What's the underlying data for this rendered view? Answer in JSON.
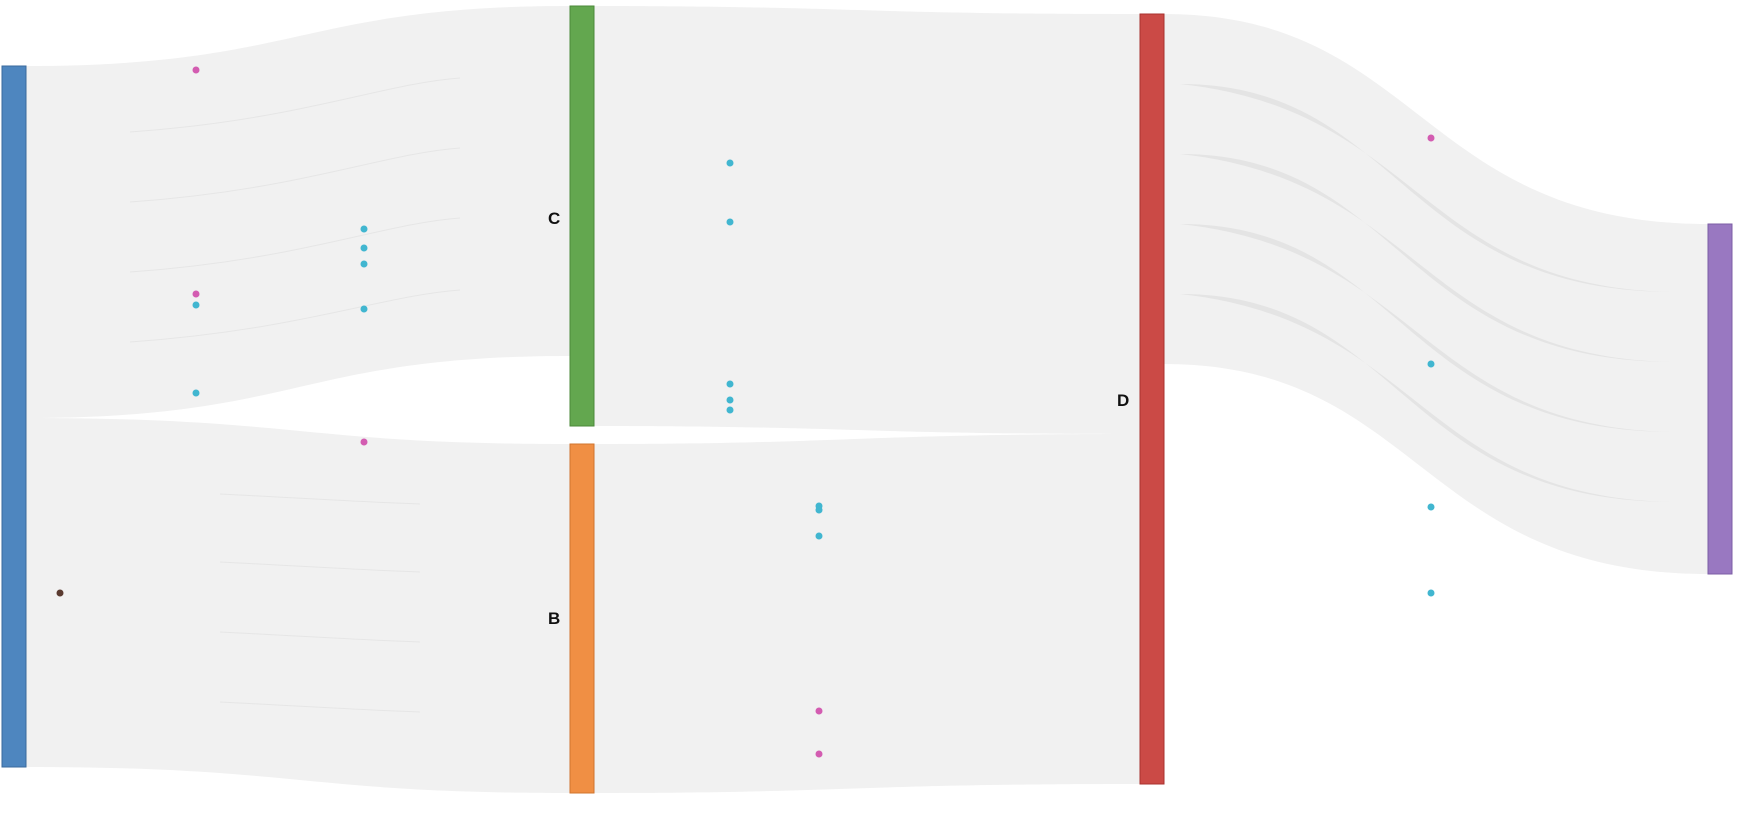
{
  "chart_data": {
    "type": "sankey",
    "nodes": [
      {
        "id": "A",
        "label": "",
        "color": "#4e86bf"
      },
      {
        "id": "C",
        "label": "C",
        "color": "#63a74f"
      },
      {
        "id": "B",
        "label": "B",
        "color": "#f08f44"
      },
      {
        "id": "D",
        "label": "D",
        "color": "#cb4a46"
      },
      {
        "id": "E",
        "label": "",
        "color": "#9978c1"
      }
    ],
    "links": [
      {
        "source": "A",
        "target": "C",
        "value": 50
      },
      {
        "source": "A",
        "target": "B",
        "value": 50
      },
      {
        "source": "C",
        "target": "D",
        "value": 60
      },
      {
        "source": "B",
        "target": "D",
        "value": 50
      },
      {
        "source": "D",
        "target": "E",
        "value": 50
      }
    ],
    "particle_colors": {
      "cyan": "#41b6d0",
      "pink": "#d35cb1",
      "dark": "#5a3a30"
    }
  }
}
